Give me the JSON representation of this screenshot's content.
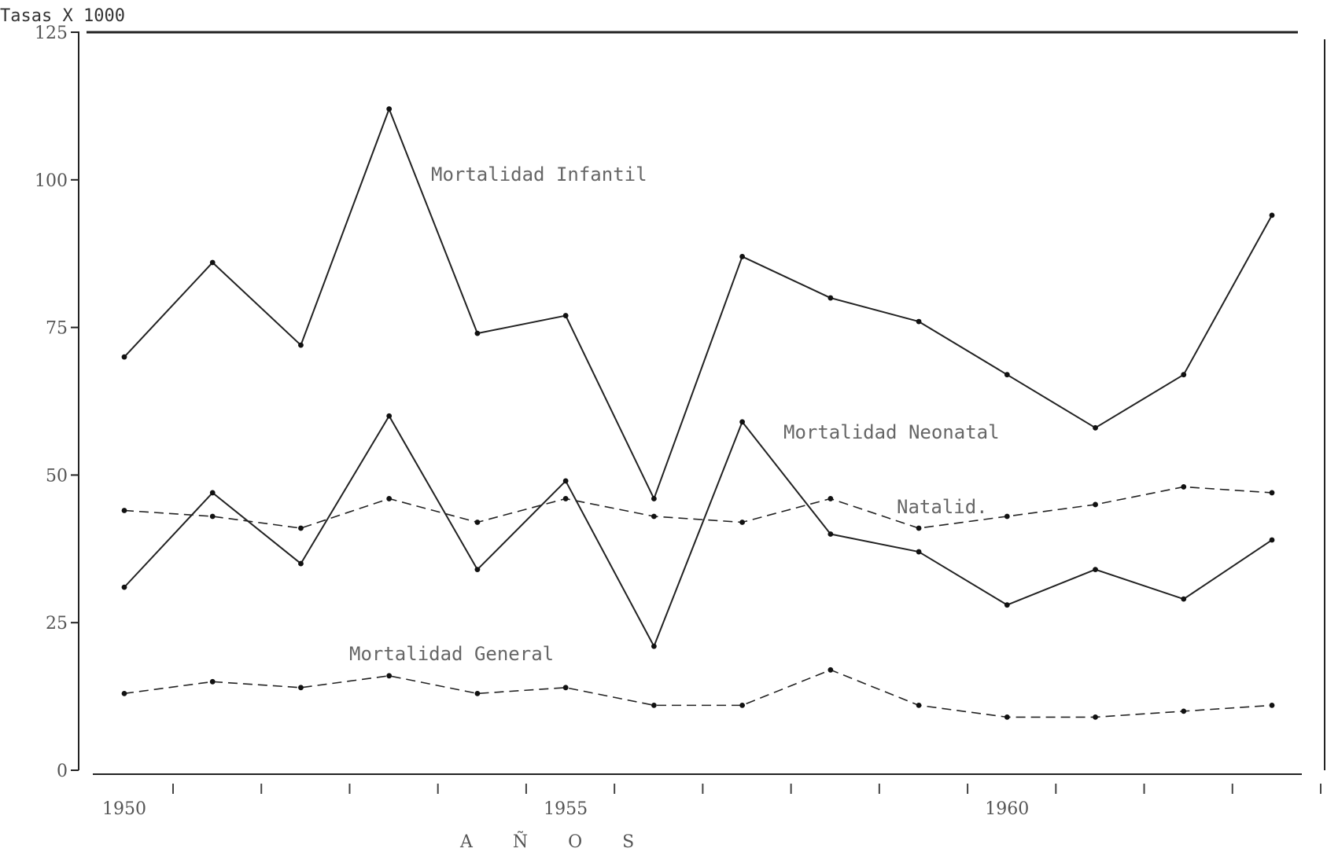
{
  "chart_data": {
    "type": "line",
    "ylabel": "Tasas X 1000",
    "xlabel": "A Ñ O S",
    "ylim": [
      0,
      125
    ],
    "yticks": [
      "0",
      "25",
      "50",
      "75",
      "100",
      "125"
    ],
    "xlim": [
      1950,
      1963
    ],
    "xticks": [
      "1950",
      "1955",
      "1960"
    ],
    "grid": false,
    "x": [
      1950,
      1951,
      1952,
      1953,
      1954,
      1955,
      1956,
      1957,
      1958,
      1959,
      1960,
      1961,
      1962,
      1963
    ],
    "series": [
      {
        "name": "Mortalidad Infantil",
        "style": "solid",
        "values": [
          70,
          86,
          72,
          112,
          74,
          77,
          46,
          87,
          80,
          76,
          67,
          58,
          67,
          94
        ]
      },
      {
        "name": "Mortalidad Neonatal",
        "style": "solid",
        "values": [
          31,
          47,
          35,
          60,
          34,
          49,
          21,
          59,
          40,
          37,
          28,
          34,
          29,
          39
        ]
      },
      {
        "name": "Natalid.",
        "style": "dashed",
        "values": [
          44,
          43,
          41,
          46,
          42,
          46,
          43,
          42,
          46,
          41,
          43,
          45,
          48,
          47
        ]
      },
      {
        "name": "Mortalidad General",
        "style": "dashed",
        "values": [
          13,
          15,
          14,
          16,
          13,
          14,
          11,
          11,
          17,
          11,
          9,
          9,
          10,
          11
        ]
      }
    ]
  }
}
